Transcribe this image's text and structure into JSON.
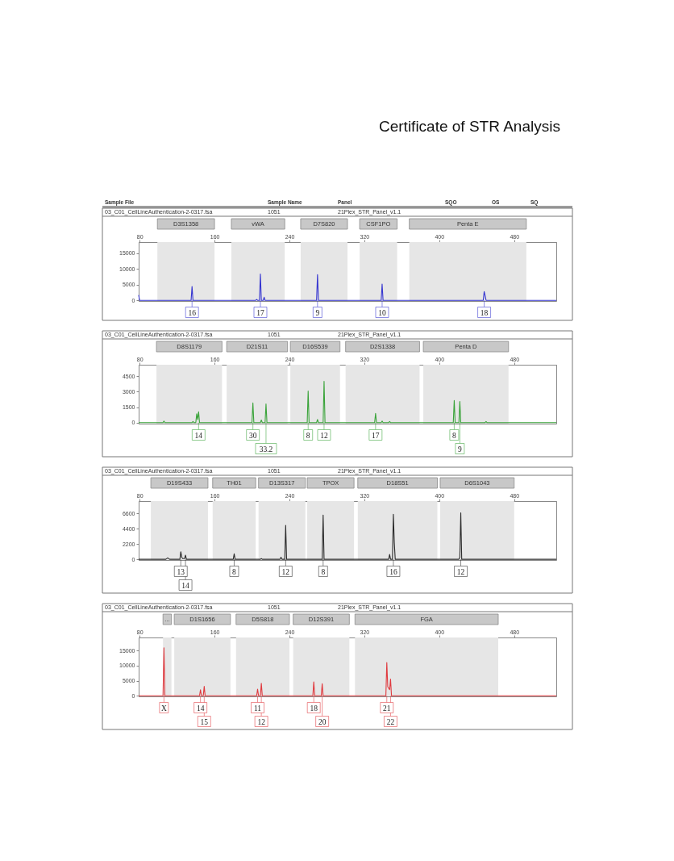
{
  "chart_data": [
    {
      "type": "line",
      "title": "Certificate of STR Analysis",
      "annotations": [
        "Sample File",
        "Sample Name",
        "Panel",
        "SQO",
        "OS",
        "SQ",
        "03_C01_CellLineAuthentication-2-0317.fsa",
        "1051",
        "21Plex_STR_Panel_v1.1",
        {
          "text": "16",
          "x": 136,
          "y": 0
        },
        {
          "text": "17",
          "x": 209,
          "y": 0
        },
        {
          "text": "9",
          "x": 270,
          "y": 0
        },
        {
          "text": "10",
          "x": 339,
          "y": 0
        },
        {
          "text": "18",
          "x": 448,
          "y": 0
        }
      ],
      "x": [
        79,
        80,
        135,
        136,
        137,
        204,
        205,
        206,
        208,
        209,
        210,
        212,
        213,
        214,
        269,
        270,
        271,
        338,
        339,
        340,
        447,
        448,
        449,
        450,
        525
      ],
      "series": [
        {
          "color": "#3535d0",
          "values": [
            1700,
            0,
            0,
            4400,
            0,
            0,
            300,
            0,
            0,
            8400,
            0,
            0,
            1000,
            0,
            0,
            8200,
            0,
            0,
            5200,
            0,
            0,
            2800,
            1500,
            0,
            0
          ]
        }
      ],
      "xlim": [
        79,
        525
      ],
      "ylim": [
        -200,
        18600
      ],
      "xticks": [
        80,
        160,
        240,
        320,
        400,
        480
      ],
      "yticks": [
        0,
        5000,
        10000,
        15000
      ],
      "bands": [
        {
          "axis": "x",
          "from": 99,
          "to": 160,
          "label": "D3S1358"
        },
        {
          "axis": "x",
          "from": 178,
          "to": 235,
          "label": "vWA"
        },
        {
          "axis": "x",
          "from": 252,
          "to": 302,
          "label": "D7S820"
        },
        {
          "axis": "x",
          "from": 315,
          "to": 355,
          "label": "CSF1PO"
        },
        {
          "axis": "x",
          "from": 368,
          "to": 493,
          "label": "Penta E"
        }
      ]
    },
    {
      "type": "line",
      "annotations": [
        "03_C01_CellLineAuthentication-2-0317.fsa",
        "1051",
        "21Plex_STR_Panel_v1.1",
        {
          "text": "14",
          "x": 143,
          "y": 0
        },
        {
          "text": "30",
          "x": 201,
          "y": 0
        },
        {
          "text": "33.2",
          "x": 215,
          "y": 0
        },
        {
          "text": "8",
          "x": 260,
          "y": 0
        },
        {
          "text": "12",
          "x": 277,
          "y": 0
        },
        {
          "text": "17",
          "x": 332,
          "y": 0
        },
        {
          "text": "8",
          "x": 416,
          "y": 0
        },
        {
          "text": "9",
          "x": 422,
          "y": 0
        }
      ],
      "x": [
        79,
        105,
        106,
        107,
        136,
        137,
        138,
        140,
        141,
        142,
        143,
        144,
        200,
        201,
        202,
        209,
        210,
        211,
        214,
        215,
        216,
        259,
        260,
        261,
        269,
        270,
        271,
        276,
        277,
        278,
        331,
        332,
        333,
        338,
        339,
        340,
        346,
        347,
        348,
        415,
        416,
        417,
        421,
        422,
        423,
        449,
        450,
        451,
        525
      ],
      "series": [
        {
          "color": "#39a339",
          "values": [
            0,
            0,
            150,
            0,
            0,
            100,
            0,
            0,
            850,
            300,
            1050,
            0,
            0,
            1900,
            0,
            0,
            250,
            0,
            0,
            1800,
            0,
            0,
            3050,
            0,
            0,
            300,
            0,
            0,
            4000,
            0,
            0,
            900,
            0,
            0,
            150,
            0,
            0,
            100,
            0,
            0,
            2150,
            0,
            0,
            2050,
            0,
            0,
            100,
            0,
            0
          ]
        }
      ],
      "xlim": [
        79,
        525
      ],
      "ylim": [
        -100,
        5600
      ],
      "xticks": [
        80,
        160,
        240,
        320,
        400,
        480
      ],
      "yticks": [
        0,
        1500,
        3000,
        4500
      ],
      "bands": [
        {
          "axis": "x",
          "from": 98,
          "to": 168,
          "label": "D8S1179"
        },
        {
          "axis": "x",
          "from": 173,
          "to": 238,
          "label": "D21S11"
        },
        {
          "axis": "x",
          "from": 241,
          "to": 294,
          "label": "D16S539"
        },
        {
          "axis": "x",
          "from": 300,
          "to": 379,
          "label": "D2S1338"
        },
        {
          "axis": "x",
          "from": 383,
          "to": 474,
          "label": "Penta D"
        }
      ]
    },
    {
      "type": "line",
      "annotations": [
        "03_C01_CellLineAuthentication-2-0317.fsa",
        "1051",
        "21Plex_STR_Panel_v1.1",
        {
          "text": "13",
          "x": 124,
          "y": 0
        },
        {
          "text": "14",
          "x": 129,
          "y": 0
        },
        {
          "text": "8",
          "x": 181,
          "y": 0
        },
        {
          "text": "12",
          "x": 236,
          "y": 0
        },
        {
          "text": "8",
          "x": 276,
          "y": 0
        },
        {
          "text": "16",
          "x": 351,
          "y": 0
        },
        {
          "text": "12",
          "x": 423,
          "y": 0
        }
      ],
      "x": [
        79,
        108,
        110,
        112,
        123,
        124,
        125,
        126,
        128,
        129,
        130,
        180,
        181,
        182,
        209,
        210,
        211,
        230,
        231,
        232,
        235,
        236,
        237,
        275,
        276,
        277,
        346,
        347,
        348,
        350,
        351,
        352,
        353,
        421,
        422,
        423,
        424,
        525
      ],
      "series": [
        {
          "color": "#2b2b2b",
          "values": [
            0,
            0,
            200,
            0,
            0,
            1100,
            300,
            100,
            100,
            600,
            0,
            0,
            800,
            0,
            0,
            100,
            0,
            0,
            300,
            0,
            0,
            4900,
            0,
            0,
            6400,
            0,
            0,
            700,
            0,
            0,
            6500,
            2400,
            0,
            0,
            300,
            6700,
            0,
            0
          ]
        }
      ],
      "xlim": [
        79,
        525
      ],
      "ylim": [
        -100,
        8400
      ],
      "xticks": [
        80,
        160,
        240,
        320,
        400,
        480
      ],
      "yticks": [
        0,
        2200,
        4400,
        6600
      ],
      "bands": [
        {
          "axis": "x",
          "from": 92,
          "to": 153,
          "label": "D19S433"
        },
        {
          "axis": "x",
          "from": 158,
          "to": 204,
          "label": "TH01"
        },
        {
          "axis": "x",
          "from": 207,
          "to": 257,
          "label": "D13S317"
        },
        {
          "axis": "x",
          "from": 259,
          "to": 309,
          "label": "TPOX"
        },
        {
          "axis": "x",
          "from": 313,
          "to": 398,
          "label": "D18S51"
        },
        {
          "axis": "x",
          "from": 401,
          "to": 480,
          "label": "D6S1043"
        }
      ]
    },
    {
      "type": "line",
      "annotations": [
        "03_C01_CellLineAuthentication-2-0317.fsa",
        "1051",
        "21Plex_STR_Panel_v1.1",
        {
          "text": "X",
          "x": 106,
          "y": 0
        },
        {
          "text": "14",
          "x": 145,
          "y": 0
        },
        {
          "text": "15",
          "x": 149,
          "y": 0
        },
        {
          "text": "11",
          "x": 206,
          "y": 0
        },
        {
          "text": "12",
          "x": 210,
          "y": 0
        },
        {
          "text": "18",
          "x": 266,
          "y": 0
        },
        {
          "text": "20",
          "x": 275,
          "y": 0
        },
        {
          "text": "21",
          "x": 344,
          "y": 0
        },
        {
          "text": "22",
          "x": 348,
          "y": 0
        }
      ],
      "x": [
        79,
        105,
        106,
        107,
        144,
        145,
        146,
        148,
        149,
        150,
        205,
        206,
        207,
        209,
        210,
        211,
        265,
        266,
        267,
        274,
        275,
        276,
        343,
        344,
        345,
        347,
        348,
        349,
        525
      ],
      "series": [
        {
          "color": "#e0393e",
          "values": [
            0,
            0,
            15900,
            0,
            0,
            2000,
            0,
            0,
            3100,
            0,
            0,
            2200,
            0,
            0,
            4100,
            0,
            0,
            4600,
            0,
            0,
            4000,
            0,
            0,
            11000,
            3000,
            2000,
            5500,
            0,
            0
          ]
        }
      ],
      "xlim": [
        79,
        525
      ],
      "ylim": [
        -200,
        19300
      ],
      "xticks": [
        80,
        160,
        240,
        320,
        400,
        480
      ],
      "yticks": [
        0,
        5000,
        10000,
        15000
      ],
      "bands": [
        {
          "axis": "x",
          "from": 105,
          "to": 114,
          "label": "..."
        },
        {
          "axis": "x",
          "from": 117,
          "to": 177,
          "label": "D1S1656"
        },
        {
          "axis": "x",
          "from": 183,
          "to": 240,
          "label": "D5S818"
        },
        {
          "axis": "x",
          "from": 244,
          "to": 304,
          "label": "D12S391"
        },
        {
          "axis": "x",
          "from": 310,
          "to": 463,
          "label": "FGA"
        }
      ]
    }
  ]
}
